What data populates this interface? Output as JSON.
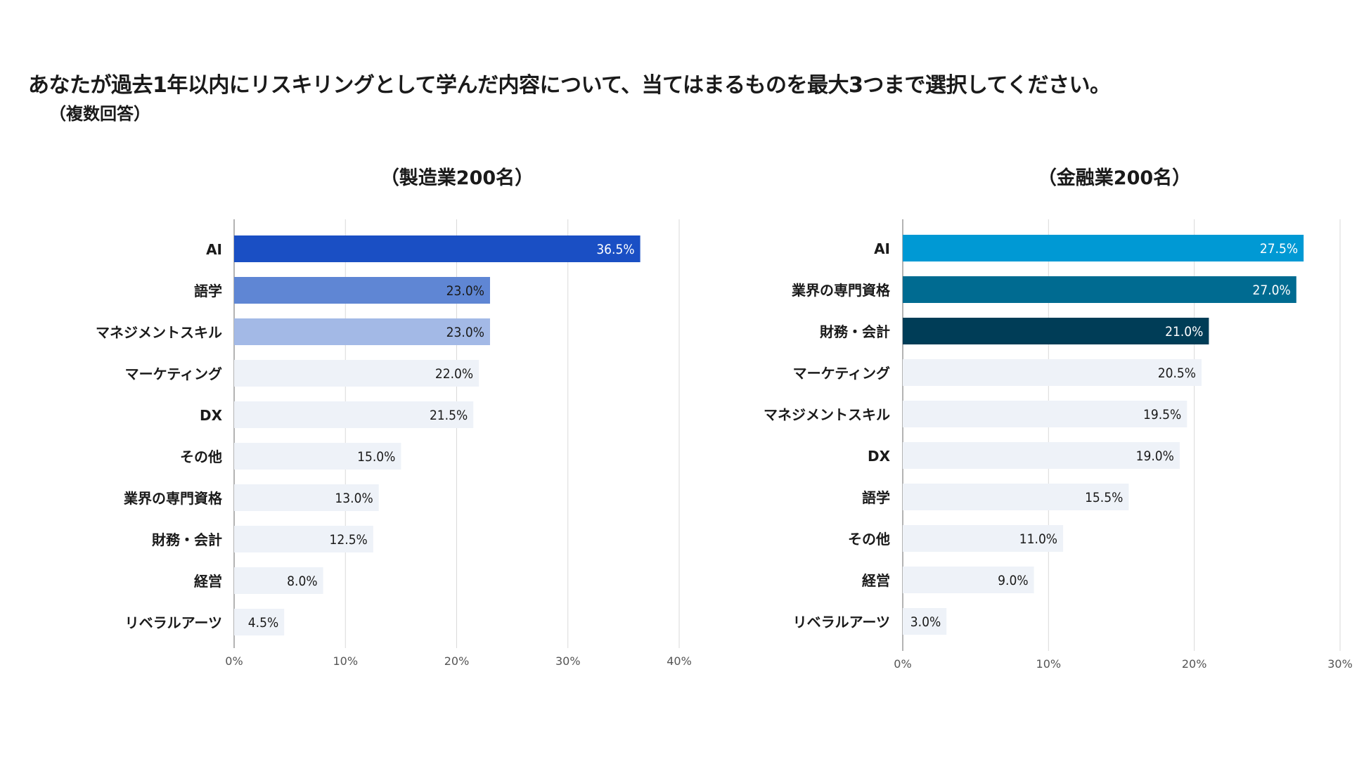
{
  "title": "あなたが過去1年以内にリスキリングとして学んだ内容について、当てはまるものを最大3つまで選択してください。",
  "subtitle": "（複数回答）",
  "chart_data": [
    {
      "type": "bar",
      "orientation": "horizontal",
      "title": "（製造業200名）",
      "categories": [
        "AI",
        "語学",
        "マネジメントスキル",
        "マーケティング",
        "DX",
        "その他",
        "業界の専門資格",
        "財務・会計",
        "経営",
        "リベラルアーツ"
      ],
      "values": [
        36.5,
        23.0,
        23.0,
        22.0,
        21.5,
        15.0,
        13.0,
        12.5,
        8.0,
        4.5
      ],
      "value_labels": [
        "36.5%",
        "23.0%",
        "23.0%",
        "22.0%",
        "21.5%",
        "15.0%",
        "13.0%",
        "12.5%",
        "8.0%",
        "4.5%"
      ],
      "bar_colors": [
        "#1a4fc4",
        "#5f86d4",
        "#a3b9e6",
        "#eef2f8",
        "#eef2f8",
        "#eef2f8",
        "#eef2f8",
        "#eef2f8",
        "#eef2f8",
        "#eef2f8"
      ],
      "label_colors": [
        "#ffffff",
        "#1a1a1a",
        "#1a1a1a",
        "#1a1a1a",
        "#1a1a1a",
        "#1a1a1a",
        "#1a1a1a",
        "#1a1a1a",
        "#1a1a1a",
        "#1a1a1a"
      ],
      "xlim": [
        0,
        40
      ],
      "xticks": [
        0,
        10,
        20,
        30,
        40
      ],
      "xtick_labels": [
        "0%",
        "10%",
        "20%",
        "30%",
        "40%"
      ],
      "grid": true,
      "legend": "none"
    },
    {
      "type": "bar",
      "orientation": "horizontal",
      "title": "（金融業200名）",
      "categories": [
        "AI",
        "業界の専門資格",
        "財務・会計",
        "マーケティング",
        "マネジメントスキル",
        "DX",
        "語学",
        "その他",
        "経営",
        "リベラルアーツ"
      ],
      "values": [
        27.5,
        27.0,
        21.0,
        20.5,
        19.5,
        19.0,
        15.5,
        11.0,
        9.0,
        3.0
      ],
      "value_labels": [
        "27.5%",
        "27.0%",
        "21.0%",
        "20.5%",
        "19.5%",
        "19.0%",
        "15.5%",
        "11.0%",
        "9.0%",
        "3.0%"
      ],
      "bar_colors": [
        "#0099d4",
        "#006b91",
        "#003d57",
        "#eef2f8",
        "#eef2f8",
        "#eef2f8",
        "#eef2f8",
        "#eef2f8",
        "#eef2f8",
        "#eef2f8"
      ],
      "label_colors": [
        "#ffffff",
        "#ffffff",
        "#ffffff",
        "#1a1a1a",
        "#1a1a1a",
        "#1a1a1a",
        "#1a1a1a",
        "#1a1a1a",
        "#1a1a1a",
        "#1a1a1a"
      ],
      "xlim": [
        0,
        30
      ],
      "xticks": [
        0,
        10,
        20,
        30
      ],
      "xtick_labels": [
        "0%",
        "10%",
        "20%",
        "30%"
      ],
      "grid": true,
      "legend": "none"
    }
  ]
}
